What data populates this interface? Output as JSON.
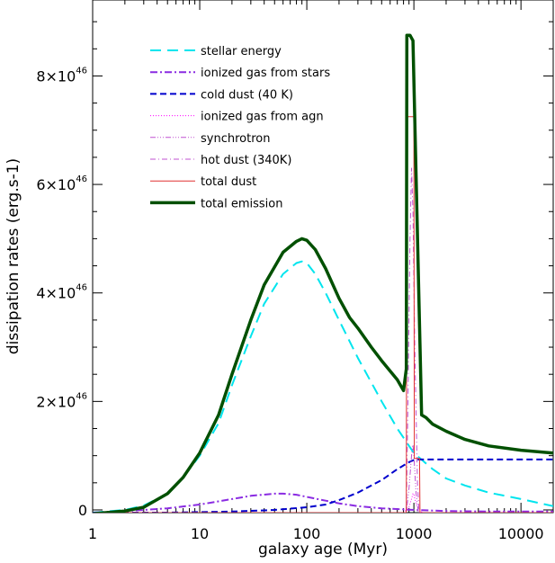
{
  "chart_data": {
    "type": "line",
    "xlabel": "galaxy age (Myr)",
    "ylabel": "dissipation rates (erg.s-1)",
    "xscale": "log",
    "xlim": [
      1,
      20000
    ],
    "ylim": [
      -0.05,
      9.4
    ],
    "grid": false,
    "legend_position": "top-left",
    "x_ticks": [
      {
        "value": 1,
        "label": "1"
      },
      {
        "value": 10,
        "label": "10"
      },
      {
        "value": 100,
        "label": "100"
      },
      {
        "value": 1000,
        "label": "1000"
      },
      {
        "value": 10000,
        "label": "10000"
      }
    ],
    "y_ticks": [
      {
        "value": 0,
        "mantissa": "0",
        "exponent": ""
      },
      {
        "value": 2,
        "mantissa": "2×10",
        "exponent": "46"
      },
      {
        "value": 4,
        "mantissa": "4×10",
        "exponent": "46"
      },
      {
        "value": 6,
        "mantissa": "6×10",
        "exponent": "46"
      },
      {
        "value": 8,
        "mantissa": "8×10",
        "exponent": "46"
      }
    ],
    "series": [
      {
        "name": "stellar energy",
        "color": "#00e5ee",
        "dash": "12,7",
        "width": 2,
        "points": [
          [
            1,
            -0.05
          ],
          [
            2,
            0
          ],
          [
            3,
            0.08
          ],
          [
            5,
            0.3
          ],
          [
            7,
            0.6
          ],
          [
            10,
            1.0
          ],
          [
            15,
            1.6
          ],
          [
            20,
            2.3
          ],
          [
            30,
            3.2
          ],
          [
            40,
            3.8
          ],
          [
            60,
            4.35
          ],
          [
            80,
            4.55
          ],
          [
            90,
            4.58
          ],
          [
            100,
            4.55
          ],
          [
            120,
            4.35
          ],
          [
            150,
            4.0
          ],
          [
            200,
            3.5
          ],
          [
            300,
            2.8
          ],
          [
            500,
            2.0
          ],
          [
            700,
            1.5
          ],
          [
            1000,
            1.05
          ],
          [
            1500,
            0.75
          ],
          [
            2000,
            0.58
          ],
          [
            3000,
            0.45
          ],
          [
            5000,
            0.32
          ],
          [
            10000,
            0.2
          ],
          [
            20000,
            0.07
          ]
        ]
      },
      {
        "name": "ionized gas from stars",
        "color": "#8a2be2",
        "dash": "8,3,2,3",
        "width": 2,
        "points": [
          [
            1,
            -0.05
          ],
          [
            3,
            0
          ],
          [
            5,
            0.03
          ],
          [
            10,
            0.1
          ],
          [
            20,
            0.2
          ],
          [
            30,
            0.26
          ],
          [
            50,
            0.3
          ],
          [
            60,
            0.3
          ],
          [
            80,
            0.28
          ],
          [
            100,
            0.24
          ],
          [
            150,
            0.17
          ],
          [
            200,
            0.12
          ],
          [
            300,
            0.07
          ],
          [
            500,
            0.03
          ],
          [
            800,
            0.01
          ],
          [
            1000,
            0
          ],
          [
            2000,
            -0.02
          ],
          [
            5000,
            -0.03
          ],
          [
            20000,
            -0.03
          ]
        ]
      },
      {
        "name": "cold dust (40 K)",
        "color": "#0000cd",
        "dash": "7,4",
        "width": 2,
        "points": [
          [
            1,
            -0.05
          ],
          [
            5,
            -0.05
          ],
          [
            10,
            -0.04
          ],
          [
            20,
            -0.03
          ],
          [
            50,
            0
          ],
          [
            100,
            0.05
          ],
          [
            150,
            0.1
          ],
          [
            200,
            0.18
          ],
          [
            300,
            0.32
          ],
          [
            500,
            0.55
          ],
          [
            700,
            0.75
          ],
          [
            900,
            0.88
          ],
          [
            1000,
            0.92
          ],
          [
            1100,
            0.93
          ],
          [
            1500,
            0.93
          ],
          [
            5000,
            0.93
          ],
          [
            20000,
            0.93
          ]
        ]
      },
      {
        "name": "ionized gas from agn",
        "color": "#ff00ff",
        "dash": "1,2",
        "width": 1,
        "points": [
          [
            1,
            -0.05
          ],
          [
            800,
            -0.05
          ],
          [
            900,
            0.05
          ],
          [
            950,
            0.2
          ],
          [
            980,
            0.3
          ],
          [
            1000,
            0.3
          ],
          [
            1020,
            0.2
          ],
          [
            1080,
            0.05
          ],
          [
            1200,
            -0.05
          ],
          [
            20000,
            -0.05
          ]
        ]
      },
      {
        "name": "synchrotron",
        "color": "#c050d0",
        "dash": "6,2,1,2,1,2,1,2",
        "width": 1,
        "points": [
          [
            1,
            -0.05
          ],
          [
            850,
            -0.05
          ],
          [
            900,
            0.4
          ],
          [
            950,
            1.0
          ],
          [
            980,
            1.2
          ],
          [
            1000,
            1.0
          ],
          [
            1050,
            0.3
          ],
          [
            1100,
            -0.05
          ],
          [
            20000,
            -0.05
          ]
        ]
      },
      {
        "name": "hot dust (340K)",
        "color": "#c050d0",
        "dash": "6,3,1,3",
        "width": 1,
        "points": [
          [
            1,
            -0.05
          ],
          [
            850,
            -0.05
          ],
          [
            880,
            2.0
          ],
          [
            920,
            5.0
          ],
          [
            950,
            6.3
          ],
          [
            980,
            5.5
          ],
          [
            1020,
            3.0
          ],
          [
            1080,
            0.5
          ],
          [
            1120,
            -0.05
          ],
          [
            20000,
            -0.05
          ]
        ]
      },
      {
        "name": "total dust",
        "color": "#e03030",
        "dash": "",
        "width": 1,
        "points": [
          [
            1,
            -0.05
          ],
          [
            850,
            -0.05
          ],
          [
            860,
            7.25
          ],
          [
            1000,
            7.25
          ],
          [
            1010,
            0.95
          ],
          [
            1130,
            0.95
          ],
          [
            1140,
            -0.05
          ],
          [
            20000,
            -0.05
          ]
        ]
      },
      {
        "name": "total emission",
        "color": "#005000",
        "dash": "",
        "width": 3.5,
        "points": [
          [
            1,
            -0.07
          ],
          [
            2,
            -0.02
          ],
          [
            3,
            0.05
          ],
          [
            5,
            0.3
          ],
          [
            7,
            0.6
          ],
          [
            10,
            1.05
          ],
          [
            15,
            1.75
          ],
          [
            20,
            2.5
          ],
          [
            30,
            3.5
          ],
          [
            40,
            4.15
          ],
          [
            60,
            4.75
          ],
          [
            80,
            4.95
          ],
          [
            90,
            5.0
          ],
          [
            100,
            4.97
          ],
          [
            120,
            4.8
          ],
          [
            150,
            4.45
          ],
          [
            200,
            3.9
          ],
          [
            250,
            3.55
          ],
          [
            300,
            3.35
          ],
          [
            400,
            3.0
          ],
          [
            500,
            2.75
          ],
          [
            700,
            2.4
          ],
          [
            800,
            2.2
          ],
          [
            850,
            2.6
          ],
          [
            860,
            8.75
          ],
          [
            920,
            8.75
          ],
          [
            980,
            8.65
          ],
          [
            1180,
            1.75
          ],
          [
            1300,
            1.7
          ],
          [
            1500,
            1.58
          ],
          [
            2000,
            1.45
          ],
          [
            3000,
            1.3
          ],
          [
            5000,
            1.18
          ],
          [
            10000,
            1.1
          ],
          [
            20000,
            1.05
          ]
        ]
      }
    ]
  }
}
